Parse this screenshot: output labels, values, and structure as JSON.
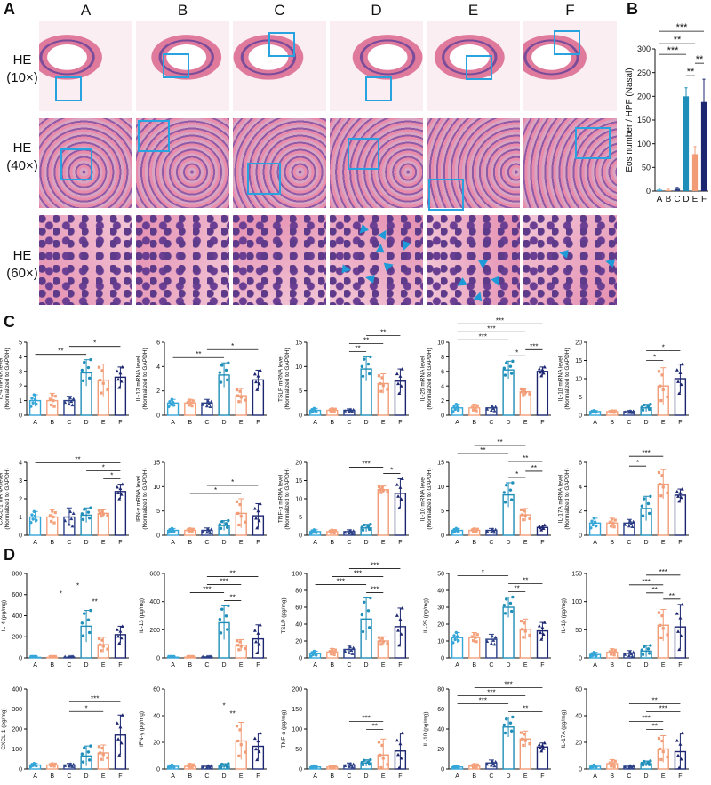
{
  "panel_letters": {
    "a": "A",
    "b": "B",
    "c": "C",
    "d": "D"
  },
  "columns": [
    "A",
    "B",
    "C",
    "D",
    "E",
    "F"
  ],
  "he_rows": [
    {
      "label_line1": "HE",
      "label_line2": "(10×)"
    },
    {
      "label_line1": "HE",
      "label_line2": "(40×)"
    },
    {
      "label_line1": "HE",
      "label_line2": "(60×)"
    }
  ],
  "colors": {
    "A": "#35a6d8",
    "B": "#f5a27c",
    "C": "#2b3f86",
    "D": "#1f8eb8",
    "E": "#f19c76",
    "F": "#1d2670",
    "highlight_box": "#29a3e0",
    "arrowhead": "#1e9ad8",
    "tissue_pink": "#e07a9c",
    "tissue_purple": "#7a4c9a",
    "tissue_bg": "#f7e9ee"
  },
  "chart_data": [
    {
      "id": "B",
      "type": "bar",
      "title": "",
      "xlabel": "",
      "ylabel": "Eos number / HPF (Nasal)",
      "categories": [
        "A",
        "B",
        "C",
        "D",
        "E",
        "F"
      ],
      "values": [
        3,
        2,
        5,
        200,
        78,
        188
      ],
      "errors": [
        3,
        2,
        3,
        18,
        16,
        48
      ],
      "ylim": [
        0,
        300
      ],
      "yticks": [
        0,
        50,
        100,
        150,
        200,
        250,
        300
      ],
      "significance": [
        "***",
        "**",
        "***",
        "**",
        "**"
      ]
    },
    {
      "id": "C1",
      "type": "bar",
      "ylabel": "IL-4 mRNA level\n(Normalized to GAPDH)",
      "categories": [
        "A",
        "B",
        "C",
        "D",
        "E",
        "F"
      ],
      "values": [
        1.0,
        1.0,
        1.0,
        2.9,
        2.4,
        2.6
      ],
      "errors": [
        0.4,
        0.5,
        0.3,
        0.9,
        1.1,
        0.7
      ],
      "ylim": [
        0,
        5
      ],
      "yticks": [
        0,
        1,
        2,
        3,
        4,
        5
      ],
      "significance": [
        "**",
        "*"
      ]
    },
    {
      "id": "C2",
      "type": "bar",
      "ylabel": "IL-13 mRNA level\n(Normalized to GAPDH)",
      "categories": [
        "A",
        "B",
        "C",
        "D",
        "E",
        "F"
      ],
      "values": [
        1.0,
        1.0,
        1.0,
        3.3,
        1.6,
        2.9
      ],
      "errors": [
        0.3,
        0.3,
        0.3,
        1.0,
        0.6,
        0.8
      ],
      "ylim": [
        0,
        6
      ],
      "yticks": [
        0,
        2,
        4,
        6
      ],
      "significance": [
        "**",
        "*"
      ]
    },
    {
      "id": "C3",
      "type": "bar",
      "ylabel": "TSLP mRNA level\n(Normalized to GAPDH)",
      "categories": [
        "A",
        "B",
        "C",
        "D",
        "E",
        "F"
      ],
      "values": [
        1.0,
        1.0,
        1.0,
        9.5,
        6.5,
        7.0
      ],
      "errors": [
        0.4,
        0.4,
        0.3,
        2.5,
        2.0,
        2.5
      ],
      "ylim": [
        0,
        15
      ],
      "yticks": [
        0,
        5,
        10,
        15
      ],
      "significance": [
        "**",
        "**",
        "**"
      ]
    },
    {
      "id": "C4",
      "type": "bar",
      "ylabel": "IL-25 mRNA level\n(Normalized to GAPDH)",
      "categories": [
        "A",
        "B",
        "C",
        "D",
        "E",
        "F"
      ],
      "values": [
        1.0,
        1.0,
        1.0,
        6.2,
        3.2,
        6.0
      ],
      "errors": [
        0.5,
        0.5,
        0.4,
        1.2,
        0.5,
        0.6
      ],
      "ylim": [
        0,
        10
      ],
      "yticks": [
        0,
        2,
        4,
        6,
        8,
        10
      ],
      "significance": [
        "***",
        "***",
        "***",
        "*",
        "***"
      ]
    },
    {
      "id": "C5",
      "type": "bar",
      "ylabel": "IL-1β mRNA level\n(Normalized to GAPDH)",
      "categories": [
        "A",
        "B",
        "C",
        "D",
        "E",
        "F"
      ],
      "values": [
        1.0,
        1.0,
        1.0,
        2.0,
        8.0,
        10.0
      ],
      "errors": [
        0.3,
        0.3,
        0.3,
        1.0,
        5.0,
        4.0
      ],
      "ylim": [
        0,
        20
      ],
      "yticks": [
        0,
        5,
        10,
        15,
        20
      ],
      "significance": [
        "*",
        "*"
      ]
    },
    {
      "id": "C6",
      "type": "bar",
      "ylabel": "CXCL-1 mRNA level\n(Normalized to GAPDH)",
      "categories": [
        "A",
        "B",
        "C",
        "D",
        "E",
        "F"
      ],
      "values": [
        1.0,
        1.0,
        1.0,
        1.1,
        1.2,
        2.4
      ],
      "errors": [
        0.3,
        0.4,
        0.5,
        0.4,
        0.2,
        0.4
      ],
      "ylim": [
        0,
        4
      ],
      "yticks": [
        0,
        1,
        2,
        3,
        4
      ],
      "significance": [
        "**",
        "*",
        "*"
      ]
    },
    {
      "id": "C7",
      "type": "bar",
      "ylabel": "IFN-γ mRNA level\n(Normalized to GAPDH)",
      "categories": [
        "A",
        "B",
        "C",
        "D",
        "E",
        "F"
      ],
      "values": [
        1.0,
        1.0,
        1.0,
        2.0,
        4.5,
        4.0
      ],
      "errors": [
        0.4,
        0.4,
        0.5,
        1.0,
        3.0,
        2.5
      ],
      "ylim": [
        0,
        15
      ],
      "yticks": [
        0,
        5,
        10,
        15
      ],
      "significance": [
        "*",
        "*"
      ]
    },
    {
      "id": "C8",
      "type": "bar",
      "ylabel": "TNF-α mRNA level\n(Normalized to GAPDH)",
      "categories": [
        "A",
        "B",
        "C",
        "D",
        "E",
        "F"
      ],
      "values": [
        1.0,
        1.0,
        1.0,
        2.0,
        12.5,
        11.5
      ],
      "errors": [
        0.5,
        0.5,
        0.5,
        1.0,
        1.0,
        4.0
      ],
      "ylim": [
        0,
        20
      ],
      "yticks": [
        0,
        5,
        10,
        15,
        20
      ],
      "significance": [
        "***",
        "*"
      ]
    },
    {
      "id": "C9",
      "type": "bar",
      "ylabel": "IL-10 mRNA level\n(Normalized to GAPDH)",
      "categories": [
        "A",
        "B",
        "C",
        "D",
        "E",
        "F"
      ],
      "values": [
        1.0,
        1.0,
        1.0,
        8.3,
        4.2,
        1.6
      ],
      "errors": [
        0.4,
        0.4,
        0.4,
        2.5,
        1.3,
        0.5
      ],
      "ylim": [
        0,
        15
      ],
      "yticks": [
        0,
        5,
        10,
        15
      ],
      "significance": [
        "**",
        "**",
        "*",
        "**",
        "**"
      ]
    },
    {
      "id": "C10",
      "type": "bar",
      "ylabel": "IL-17A mRNA level\n(Normalized to GAPDH)",
      "categories": [
        "A",
        "B",
        "C",
        "D",
        "E",
        "F"
      ],
      "values": [
        1.0,
        1.0,
        1.0,
        2.2,
        4.2,
        3.3
      ],
      "errors": [
        0.4,
        0.4,
        0.3,
        1.0,
        1.2,
        0.5
      ],
      "ylim": [
        0,
        6
      ],
      "yticks": [
        0,
        2,
        4,
        6
      ],
      "significance": [
        "***",
        "*"
      ]
    },
    {
      "id": "D1",
      "type": "bar",
      "ylabel": "IL-4 (pg/mg)",
      "categories": [
        "A",
        "B",
        "C",
        "D",
        "E",
        "F"
      ],
      "values": [
        5,
        5,
        5,
        300,
        125,
        220
      ],
      "errors": [
        3,
        3,
        3,
        150,
        70,
        80
      ],
      "ylim": [
        0,
        800
      ],
      "yticks": [
        0,
        200,
        400,
        600,
        800
      ],
      "significance": [
        "*",
        "*",
        "**"
      ]
    },
    {
      "id": "D2",
      "type": "bar",
      "ylabel": "IL-13 (pg/mg)",
      "categories": [
        "A",
        "B",
        "C",
        "D",
        "E",
        "F"
      ],
      "values": [
        5,
        5,
        5,
        250,
        90,
        135
      ],
      "errors": [
        3,
        3,
        3,
        120,
        40,
        100
      ],
      "ylim": [
        0,
        600
      ],
      "yticks": [
        0,
        200,
        400,
        600
      ],
      "significance": [
        "***",
        "***",
        "**",
        "**"
      ]
    },
    {
      "id": "D3",
      "type": "bar",
      "ylabel": "TSLP (pg/mg)",
      "categories": [
        "A",
        "B",
        "C",
        "D",
        "E",
        "F"
      ],
      "values": [
        5,
        7,
        10,
        46,
        20,
        37
      ],
      "errors": [
        3,
        4,
        5,
        25,
        5,
        22
      ],
      "ylim": [
        0,
        100
      ],
      "yticks": [
        0,
        20,
        40,
        60,
        80,
        100
      ],
      "significance": [
        "***",
        "***",
        "***",
        "***"
      ]
    },
    {
      "id": "D4",
      "type": "bar",
      "ylabel": "IL-25 (pg/mg)",
      "categories": [
        "A",
        "B",
        "C",
        "D",
        "E",
        "F"
      ],
      "values": [
        12,
        12,
        11,
        30,
        17,
        16
      ],
      "errors": [
        3,
        3,
        3,
        6,
        6,
        5
      ],
      "ylim": [
        0,
        50
      ],
      "yticks": [
        0,
        10,
        20,
        30,
        40,
        50
      ],
      "significance": [
        "*",
        "**",
        "**"
      ]
    },
    {
      "id": "D5",
      "type": "bar",
      "ylabel": "IL-1β (pg/mg)",
      "categories": [
        "A",
        "B",
        "C",
        "D",
        "E",
        "F"
      ],
      "values": [
        6,
        10,
        8,
        12,
        58,
        55
      ],
      "errors": [
        4,
        6,
        5,
        10,
        28,
        40
      ],
      "ylim": [
        0,
        150
      ],
      "yticks": [
        0,
        50,
        100,
        150
      ],
      "significance": [
        "***",
        "***",
        "**",
        "**"
      ]
    },
    {
      "id": "D6",
      "type": "bar",
      "ylabel": "CXCL-1 (pg/mg)",
      "categories": [
        "A",
        "B",
        "C",
        "D",
        "E",
        "F"
      ],
      "values": [
        20,
        20,
        20,
        65,
        80,
        170
      ],
      "errors": [
        8,
        8,
        8,
        50,
        40,
        100
      ],
      "ylim": [
        0,
        400
      ],
      "yticks": [
        0,
        100,
        200,
        300,
        400
      ],
      "significance": [
        "***",
        "*"
      ]
    },
    {
      "id": "D7",
      "type": "bar",
      "ylabel": "IFN-γ (pg/mg)",
      "categories": [
        "A",
        "B",
        "C",
        "D",
        "E",
        "F"
      ],
      "values": [
        2,
        2,
        2,
        2,
        21,
        17
      ],
      "errors": [
        1,
        2,
        1,
        2,
        14,
        10
      ],
      "ylim": [
        0,
        60
      ],
      "yticks": [
        0,
        20,
        40,
        60
      ],
      "significance": [
        "*",
        "**"
      ]
    },
    {
      "id": "D8",
      "type": "bar",
      "ylabel": "TNF-α (pg/mg)",
      "categories": [
        "A",
        "B",
        "C",
        "D",
        "E",
        "F"
      ],
      "values": [
        5,
        5,
        10,
        15,
        35,
        45
      ],
      "errors": [
        3,
        3,
        5,
        8,
        40,
        45
      ],
      "ylim": [
        0,
        200
      ],
      "yticks": [
        0,
        50,
        100,
        150,
        200
      ],
      "significance": [
        "***",
        "**"
      ]
    },
    {
      "id": "D9",
      "type": "bar",
      "ylabel": "IL-10 (pg/mg)",
      "categories": [
        "A",
        "B",
        "C",
        "D",
        "E",
        "F"
      ],
      "values": [
        2,
        3,
        6,
        42,
        30,
        22
      ],
      "errors": [
        1,
        2,
        3,
        10,
        8,
        4
      ],
      "ylim": [
        0,
        80
      ],
      "yticks": [
        0,
        20,
        40,
        60,
        80
      ],
      "significance": [
        "***",
        "***",
        "***",
        "**"
      ]
    },
    {
      "id": "D10",
      "type": "bar",
      "ylabel": "IL-17A (pg/mg)",
      "categories": [
        "A",
        "B",
        "C",
        "D",
        "E",
        "F"
      ],
      "values": [
        2,
        4,
        2,
        4,
        15,
        13
      ],
      "errors": [
        1,
        3,
        1,
        2,
        10,
        14
      ],
      "ylim": [
        0,
        60
      ],
      "yticks": [
        0,
        20,
        40,
        60
      ],
      "significance": [
        "***",
        "***",
        "**",
        "**"
      ]
    }
  ]
}
